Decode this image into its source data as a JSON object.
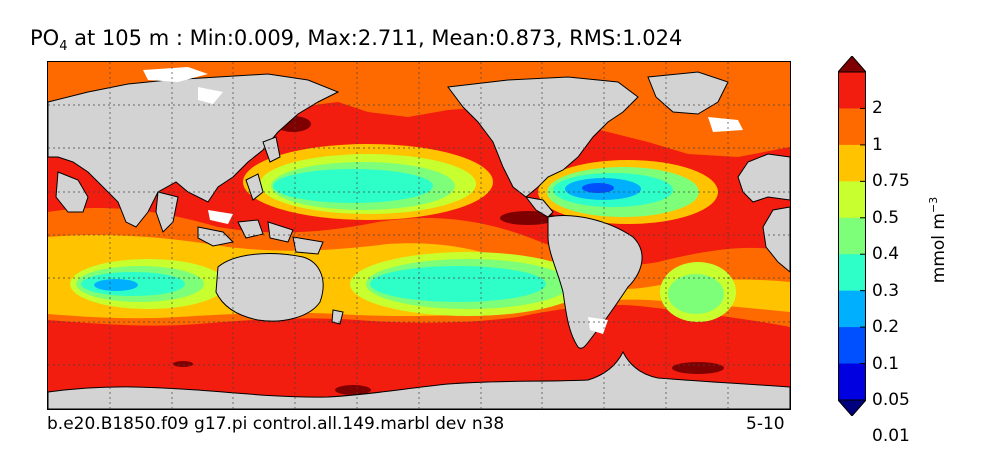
{
  "title": {
    "variable_main": "PO",
    "variable_sub": "4",
    "text": " at 105 m : Min:0.009, Max:2.711, Mean:0.873, RMS:1.024"
  },
  "footer": {
    "case_name": "b.e20.B1850.f09 g17.pi control.all.149.marbl dev n38",
    "years": "5-10"
  },
  "colorbar": {
    "unit_main": "mmol m",
    "unit_sup": "−3",
    "levels": [
      "2",
      "1",
      "0.75",
      "0.5",
      "0.4",
      "0.3",
      "0.2",
      "0.1",
      "0.05",
      "0.01"
    ],
    "colors": [
      "#7f0000",
      "#f21d0e",
      "#ff6a00",
      "#ffc300",
      "#c8ff2e",
      "#7dff7a",
      "#2effc8",
      "#00b0ff",
      "#0050ff",
      "#0000e0",
      "#00007f"
    ],
    "land_color": "#d3d3d3"
  }
}
